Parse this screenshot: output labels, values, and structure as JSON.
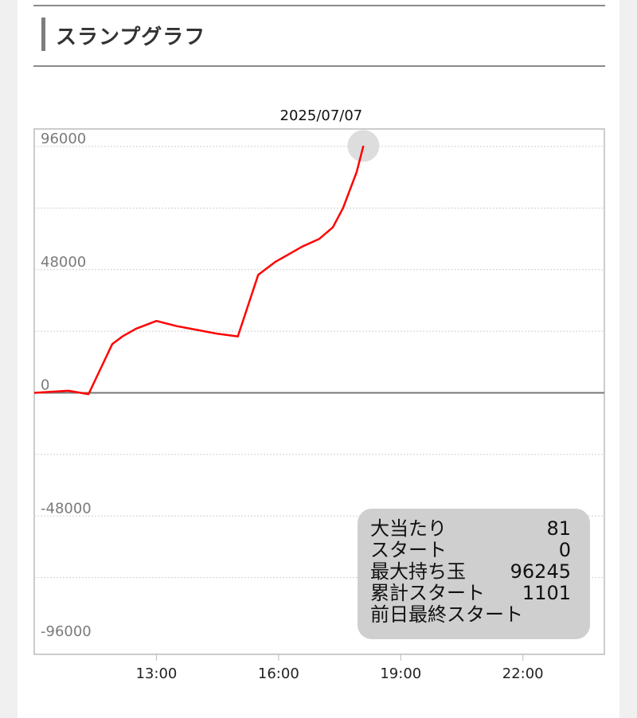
{
  "heading": {
    "title": "スランプグラフ"
  },
  "chart_data": {
    "type": "line",
    "title": "2025/07/07",
    "x_tick_labels": [
      "13:00",
      "16:00",
      "19:00",
      "22:00"
    ],
    "x_ticks_hours": [
      13,
      16,
      19,
      22
    ],
    "xlim_hours": [
      10.0,
      24.0
    ],
    "y_tick_labels": [
      "96000",
      "48000",
      "0",
      "-48000",
      "-96000"
    ],
    "y_ticks": [
      96000,
      48000,
      0,
      -48000,
      -96000
    ],
    "ylim": [
      -96000,
      96000
    ],
    "grid": true,
    "series": [
      {
        "color": "#ff0000",
        "x_time": [
          "10:00",
          "10:50",
          "11:20",
          "11:55",
          "12:10",
          "12:30",
          "13:00",
          "13:30",
          "14:00",
          "14:30",
          "15:00",
          "15:30",
          "15:55",
          "16:15",
          "16:35",
          "17:00",
          "17:20",
          "17:35",
          "17:55",
          "18:05"
        ],
        "y": [
          0,
          800,
          -500,
          19000,
          22000,
          25000,
          28000,
          26000,
          24500,
          23000,
          22000,
          46000,
          51000,
          54000,
          57000,
          60000,
          64500,
          72000,
          86000,
          96245
        ]
      }
    ],
    "highlight": {
      "x_time": "18:05",
      "y": 96245
    }
  },
  "info": {
    "rows": [
      {
        "label": "大当たり",
        "value": "81"
      },
      {
        "label": "スタート",
        "value": "0"
      },
      {
        "label": "最大持ち玉",
        "value": "96245"
      },
      {
        "label": "累計スタート",
        "value": "1101"
      },
      {
        "label": "前日最終スタート",
        "value": ""
      }
    ]
  }
}
